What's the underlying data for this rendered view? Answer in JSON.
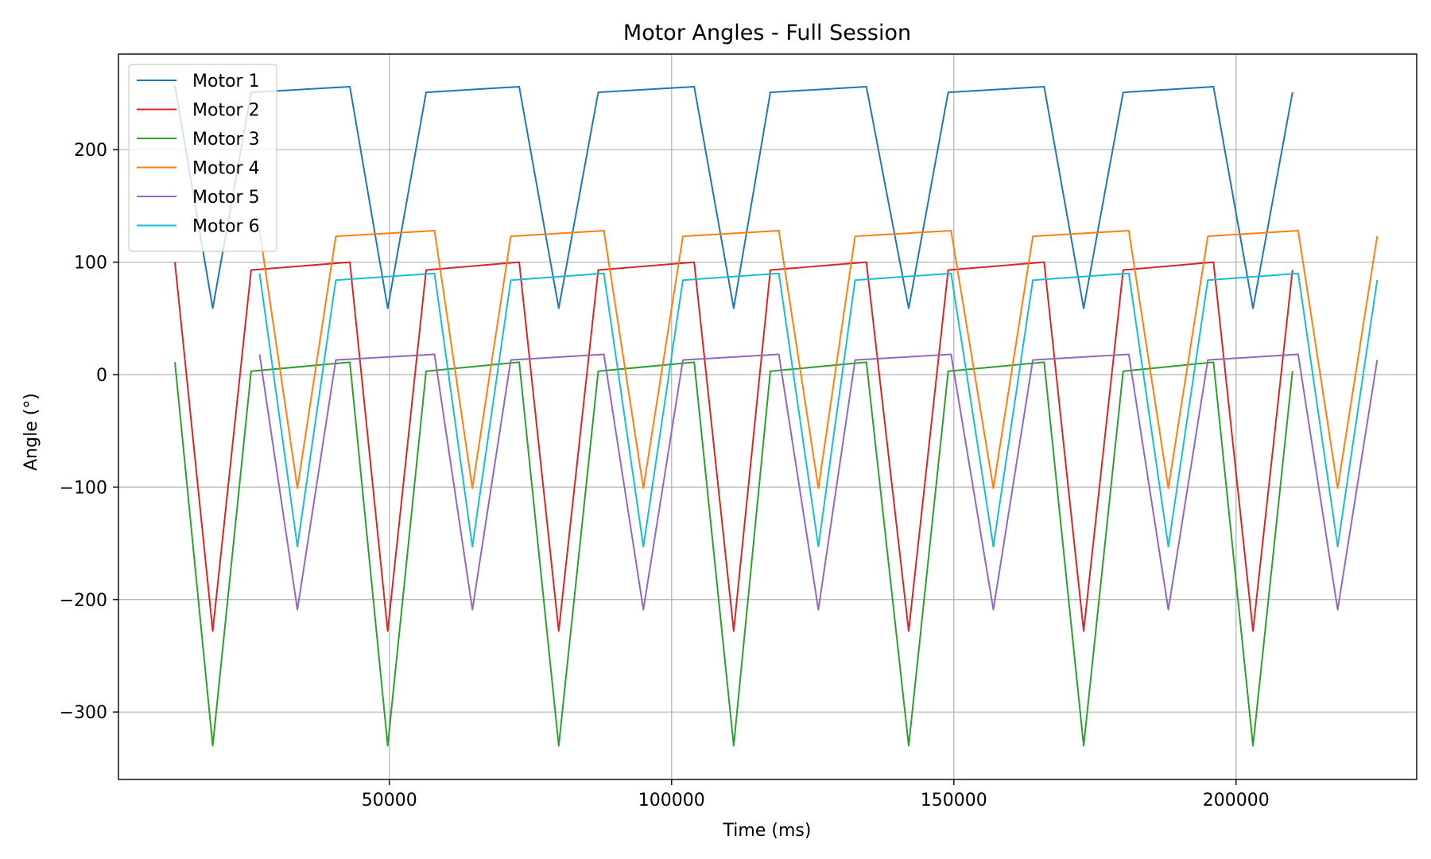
{
  "chart_data": {
    "type": "line",
    "title": "Motor Angles - Full Session",
    "xlabel": "Time (ms)",
    "ylabel": "Angle (°)",
    "xlim": [
      2000,
      232000
    ],
    "ylim": [
      -360,
      285
    ],
    "xticks": [
      50000,
      100000,
      150000,
      200000
    ],
    "xtick_labels": [
      "50000",
      "100000",
      "150000",
      "200000"
    ],
    "yticks": [
      -300,
      -200,
      -100,
      0,
      100,
      200
    ],
    "ytick_labels": [
      "−300",
      "−200",
      "−100",
      "0",
      "100",
      "200"
    ],
    "grid": true,
    "legend_position": "upper-left",
    "series": [
      {
        "name": "Motor 1",
        "color": "#1f77b4",
        "x": [
          12000,
          18700,
          25500,
          43000,
          49700,
          56500,
          73000,
          80000,
          87000,
          104000,
          111000,
          117500,
          134500,
          142000,
          149000,
          166000,
          173000,
          180000,
          196000,
          203000,
          210000
        ],
        "y": [
          257,
          59,
          251,
          256,
          59,
          251,
          256,
          59,
          251,
          256,
          59,
          251,
          256,
          59,
          251,
          256,
          59,
          251,
          256,
          59,
          251
        ]
      },
      {
        "name": "Motor 2",
        "color": "#d62728",
        "x": [
          12000,
          18700,
          25500,
          43000,
          49700,
          56500,
          73000,
          80000,
          87000,
          104000,
          111000,
          117500,
          134500,
          142000,
          149000,
          166000,
          173000,
          180000,
          196000,
          203000,
          210000
        ],
        "y": [
          100,
          -228,
          93,
          100,
          -228,
          93,
          100,
          -228,
          93,
          100,
          -228,
          93,
          100,
          -228,
          93,
          100,
          -228,
          93,
          100,
          -228,
          93
        ]
      },
      {
        "name": "Motor 3",
        "color": "#2ca02c",
        "x": [
          12000,
          18700,
          25500,
          43000,
          49700,
          56500,
          73000,
          80000,
          87000,
          104000,
          111000,
          117500,
          134500,
          142000,
          149000,
          166000,
          173000,
          180000,
          196000,
          203000,
          210000
        ],
        "y": [
          11,
          -330,
          3,
          11,
          -330,
          3,
          11,
          -330,
          3,
          11,
          -330,
          3,
          11,
          -330,
          3,
          11,
          -330,
          3,
          11,
          -330,
          3
        ]
      },
      {
        "name": "Motor 4",
        "color": "#ff7f0e",
        "x": [
          27000,
          33700,
          40500,
          58000,
          64700,
          71500,
          88000,
          95000,
          102000,
          119000,
          126000,
          132500,
          149500,
          157000,
          164000,
          181000,
          188000,
          195000,
          211000,
          218000,
          225000
        ],
        "y": [
          128,
          -101,
          123,
          128,
          -101,
          123,
          128,
          -101,
          123,
          128,
          -101,
          123,
          128,
          -101,
          123,
          128,
          -101,
          123,
          128,
          -101,
          123
        ]
      },
      {
        "name": "Motor 5",
        "color": "#9467bd",
        "x": [
          27000,
          33700,
          40500,
          58000,
          64700,
          71500,
          88000,
          95000,
          102000,
          119000,
          126000,
          132500,
          149500,
          157000,
          164000,
          181000,
          188000,
          195000,
          211000,
          218000,
          225000
        ],
        "y": [
          18,
          -209,
          13,
          18,
          -209,
          13,
          18,
          -209,
          13,
          18,
          -209,
          13,
          18,
          -209,
          13,
          18,
          -209,
          13,
          18,
          -209,
          13
        ]
      },
      {
        "name": "Motor 6",
        "color": "#17becf",
        "x": [
          27000,
          33700,
          40500,
          58000,
          64700,
          71500,
          88000,
          95000,
          102000,
          119000,
          126000,
          132500,
          149500,
          157000,
          164000,
          181000,
          188000,
          195000,
          211000,
          218000,
          225000
        ],
        "y": [
          90,
          -153,
          84,
          90,
          -153,
          84,
          90,
          -153,
          84,
          90,
          -153,
          84,
          90,
          -153,
          84,
          90,
          -153,
          84,
          90,
          -153,
          84
        ]
      }
    ]
  }
}
